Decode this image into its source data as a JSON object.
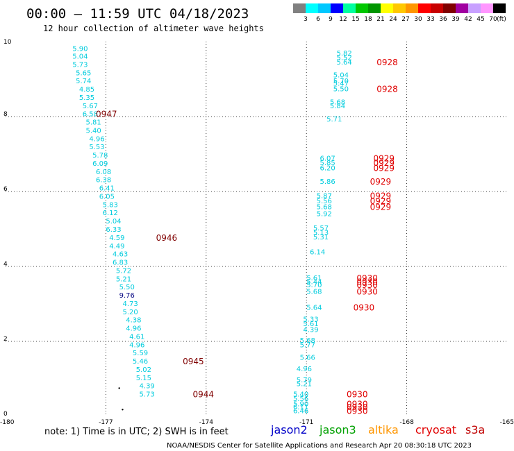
{
  "title": "00:00 — 11:59 UTC 04/18/2023",
  "subtitle": "12 hour collection of altimeter wave heights",
  "colorbar": {
    "unit": "(ft)",
    "labels": [
      "3",
      "6",
      "9",
      "12",
      "15",
      "18",
      "21",
      "24",
      "27",
      "30",
      "33",
      "36",
      "39",
      "42",
      "45",
      "70"
    ],
    "colors": [
      "#808080",
      "#00ffff",
      "#00c8ff",
      "#0000ff",
      "#00ffa0",
      "#00c800",
      "#009600",
      "#ffff00",
      "#ffc800",
      "#ff9600",
      "#ff0000",
      "#c80000",
      "#800000",
      "#a000a0",
      "#c8a0ff",
      "#ff96ff",
      "#000000"
    ]
  },
  "note": "note:  1) Time is in UTC; 2) SWH is in feet",
  "missions": [
    {
      "name": "jason2",
      "color": "#0000c8"
    },
    {
      "name": "jason3",
      "color": "#00a000"
    },
    {
      "name": "altika",
      "color": "#ff9600"
    },
    {
      "name": "cryosat",
      "color": "#e00000"
    },
    {
      "name": "s3a",
      "color": "#c00000"
    }
  ],
  "credit": "NOAA/NESDIS Center for Satellite Applications and Research    Apr 20 08:30:18 UTC 2023",
  "chart_data": {
    "type": "scatter",
    "x_ticks": [
      "-180",
      "-177",
      "-174",
      "-171",
      "-168",
      "-165"
    ],
    "y_ticks": [
      "0",
      "2",
      "4",
      "6",
      "8",
      "10"
    ],
    "xlim": [
      -180,
      -165
    ],
    "ylim": [
      0,
      10
    ],
    "grid": true,
    "colors": {
      "cyan": "#00ccdd",
      "navy": "#000080",
      "maroon": "#800000",
      "red": "#e00000"
    },
    "values": [
      {
        "x": -178.0,
        "y": 9.82,
        "v": "5.90",
        "c": "cyan"
      },
      {
        "x": -178.0,
        "y": 9.62,
        "v": "5.04",
        "c": "cyan"
      },
      {
        "x": -178.0,
        "y": 9.4,
        "v": "5.73",
        "c": "cyan"
      },
      {
        "x": -177.9,
        "y": 9.18,
        "v": "5.65",
        "c": "cyan"
      },
      {
        "x": -177.9,
        "y": 8.96,
        "v": "5.74",
        "c": "cyan"
      },
      {
        "x": -177.8,
        "y": 8.74,
        "v": "4.85",
        "c": "cyan"
      },
      {
        "x": -177.8,
        "y": 8.52,
        "v": "5.35",
        "c": "cyan"
      },
      {
        "x": -177.7,
        "y": 8.3,
        "v": "5.67",
        "c": "cyan"
      },
      {
        "x": -177.7,
        "y": 8.08,
        "v": "6.58",
        "c": "cyan"
      },
      {
        "x": -177.6,
        "y": 7.86,
        "v": "5.81",
        "c": "cyan"
      },
      {
        "x": -177.6,
        "y": 7.64,
        "v": "5.40",
        "c": "cyan"
      },
      {
        "x": -177.5,
        "y": 7.42,
        "v": "4.96",
        "c": "cyan"
      },
      {
        "x": -177.5,
        "y": 7.2,
        "v": "5.53",
        "c": "cyan"
      },
      {
        "x": -177.4,
        "y": 6.98,
        "v": "5.78",
        "c": "cyan"
      },
      {
        "x": -177.4,
        "y": 6.76,
        "v": "6.09",
        "c": "cyan"
      },
      {
        "x": -177.3,
        "y": 6.54,
        "v": "6.08",
        "c": "cyan"
      },
      {
        "x": -177.3,
        "y": 6.32,
        "v": "6.38",
        "c": "cyan"
      },
      {
        "x": -177.2,
        "y": 6.1,
        "v": "6.41",
        "c": "cyan"
      },
      {
        "x": -177.2,
        "y": 5.88,
        "v": "6.05",
        "c": "cyan"
      },
      {
        "x": -177.1,
        "y": 5.66,
        "v": "5.83",
        "c": "cyan"
      },
      {
        "x": -177.1,
        "y": 5.44,
        "v": "6.12",
        "c": "cyan"
      },
      {
        "x": -177.0,
        "y": 5.22,
        "v": "5.04",
        "c": "cyan"
      },
      {
        "x": -177.0,
        "y": 5.0,
        "v": "6.33",
        "c": "cyan"
      },
      {
        "x": -176.9,
        "y": 4.78,
        "v": "4.59",
        "c": "cyan"
      },
      {
        "x": -176.9,
        "y": 4.56,
        "v": "4.49",
        "c": "cyan"
      },
      {
        "x": -176.8,
        "y": 4.34,
        "v": "4.63",
        "c": "cyan"
      },
      {
        "x": -176.8,
        "y": 4.12,
        "v": "6.83",
        "c": "cyan"
      },
      {
        "x": -176.7,
        "y": 3.9,
        "v": "5.72",
        "c": "cyan"
      },
      {
        "x": -176.7,
        "y": 3.68,
        "v": "5.21",
        "c": "cyan"
      },
      {
        "x": -176.6,
        "y": 3.46,
        "v": "5.50",
        "c": "cyan"
      },
      {
        "x": -176.6,
        "y": 3.24,
        "v": "9.76",
        "c": "navy"
      },
      {
        "x": -176.5,
        "y": 3.02,
        "v": "4.73",
        "c": "cyan"
      },
      {
        "x": -176.5,
        "y": 2.8,
        "v": "5.20",
        "c": "cyan"
      },
      {
        "x": -176.4,
        "y": 2.58,
        "v": "4.38",
        "c": "cyan"
      },
      {
        "x": -176.4,
        "y": 2.36,
        "v": "4.96",
        "c": "cyan"
      },
      {
        "x": -176.3,
        "y": 2.14,
        "v": "4.61",
        "c": "cyan"
      },
      {
        "x": -176.3,
        "y": 1.92,
        "v": "4.96",
        "c": "cyan"
      },
      {
        "x": -176.2,
        "y": 1.7,
        "v": "5.59",
        "c": "cyan"
      },
      {
        "x": -176.2,
        "y": 1.48,
        "v": "5.46",
        "c": "cyan"
      },
      {
        "x": -176.1,
        "y": 1.26,
        "v": "5.02",
        "c": "cyan"
      },
      {
        "x": -176.1,
        "y": 1.04,
        "v": "5.15",
        "c": "cyan"
      },
      {
        "x": -176.0,
        "y": 0.82,
        "v": "4.39",
        "c": "cyan"
      },
      {
        "x": -176.0,
        "y": 0.6,
        "v": "5.73",
        "c": "cyan"
      },
      {
        "x": -170.1,
        "y": 9.7,
        "v": "5.82",
        "c": "cyan"
      },
      {
        "x": -170.1,
        "y": 9.58,
        "v": "5.52",
        "c": "cyan"
      },
      {
        "x": -170.1,
        "y": 9.46,
        "v": "5.64",
        "c": "cyan"
      },
      {
        "x": -170.2,
        "y": 9.12,
        "v": "5.04",
        "c": "cyan"
      },
      {
        "x": -170.2,
        "y": 8.96,
        "v": "5.70",
        "c": "cyan"
      },
      {
        "x": -170.2,
        "y": 8.9,
        "v": "5.47",
        "c": "cyan"
      },
      {
        "x": -170.2,
        "y": 8.75,
        "v": "5.50",
        "c": "cyan"
      },
      {
        "x": -170.3,
        "y": 8.4,
        "v": "5.68",
        "c": "cyan"
      },
      {
        "x": -170.3,
        "y": 8.3,
        "v": "5.84",
        "c": "cyan"
      },
      {
        "x": -170.4,
        "y": 7.94,
        "v": "5.71",
        "c": "cyan"
      },
      {
        "x": -170.6,
        "y": 6.9,
        "v": "6.07",
        "c": "cyan"
      },
      {
        "x": -170.6,
        "y": 6.78,
        "v": "5.85",
        "c": "cyan"
      },
      {
        "x": -170.6,
        "y": 6.64,
        "v": "6.20",
        "c": "cyan"
      },
      {
        "x": -170.6,
        "y": 6.28,
        "v": "5.86",
        "c": "cyan"
      },
      {
        "x": -170.7,
        "y": 5.9,
        "v": "5.87",
        "c": "cyan"
      },
      {
        "x": -170.7,
        "y": 5.76,
        "v": "5.56",
        "c": "cyan"
      },
      {
        "x": -170.7,
        "y": 5.6,
        "v": "5.68",
        "c": "cyan"
      },
      {
        "x": -170.7,
        "y": 5.42,
        "v": "5.92",
        "c": "cyan"
      },
      {
        "x": -170.8,
        "y": 5.04,
        "v": "5.57",
        "c": "cyan"
      },
      {
        "x": -170.8,
        "y": 4.92,
        "v": "5.13",
        "c": "cyan"
      },
      {
        "x": -170.8,
        "y": 4.8,
        "v": "5.31",
        "c": "cyan"
      },
      {
        "x": -170.9,
        "y": 4.4,
        "v": "6.14",
        "c": "cyan"
      },
      {
        "x": -171.0,
        "y": 3.7,
        "v": "5.61",
        "c": "cyan"
      },
      {
        "x": -171.0,
        "y": 3.6,
        "v": "5.44",
        "c": "cyan"
      },
      {
        "x": -171.0,
        "y": 3.52,
        "v": "5.70",
        "c": "cyan"
      },
      {
        "x": -171.0,
        "y": 3.34,
        "v": "5.68",
        "c": "cyan"
      },
      {
        "x": -171.0,
        "y": 2.92,
        "v": "5.64",
        "c": "cyan"
      },
      {
        "x": -171.1,
        "y": 2.6,
        "v": "5.33",
        "c": "cyan"
      },
      {
        "x": -171.1,
        "y": 2.48,
        "v": "5.61",
        "c": "cyan"
      },
      {
        "x": -171.1,
        "y": 2.32,
        "v": "4.39",
        "c": "cyan"
      },
      {
        "x": -171.2,
        "y": 2.04,
        "v": "5.68",
        "c": "cyan"
      },
      {
        "x": -171.2,
        "y": 1.92,
        "v": "5.77",
        "c": "cyan"
      },
      {
        "x": -171.2,
        "y": 1.58,
        "v": "5.66",
        "c": "cyan"
      },
      {
        "x": -171.3,
        "y": 1.28,
        "v": "4.96",
        "c": "cyan"
      },
      {
        "x": -171.3,
        "y": 0.98,
        "v": "5.79",
        "c": "cyan"
      },
      {
        "x": -171.3,
        "y": 0.88,
        "v": "5.21",
        "c": "cyan"
      },
      {
        "x": -171.4,
        "y": 0.6,
        "v": "5.40",
        "c": "cyan"
      },
      {
        "x": -171.4,
        "y": 0.48,
        "v": "5.56",
        "c": "cyan"
      },
      {
        "x": -171.4,
        "y": 0.34,
        "v": "5.90",
        "c": "cyan"
      },
      {
        "x": -171.4,
        "y": 0.26,
        "v": "6.11",
        "c": "cyan"
      },
      {
        "x": -171.4,
        "y": 0.16,
        "v": "6.46",
        "c": "cyan"
      }
    ],
    "times": [
      {
        "x": -177.3,
        "y": 8.08,
        "v": "0947",
        "c": "maroon"
      },
      {
        "x": -175.5,
        "y": 4.78,
        "v": "0946",
        "c": "maroon"
      },
      {
        "x": -174.7,
        "y": 1.48,
        "v": "0945",
        "c": "maroon"
      },
      {
        "x": -174.4,
        "y": 0.6,
        "v": "0944",
        "c": "maroon"
      },
      {
        "x": -168.9,
        "y": 9.46,
        "v": "0928",
        "c": "red"
      },
      {
        "x": -168.9,
        "y": 8.75,
        "v": "0928",
        "c": "red"
      },
      {
        "x": -169.0,
        "y": 6.9,
        "v": "0929",
        "c": "red"
      },
      {
        "x": -169.0,
        "y": 6.78,
        "v": "0929",
        "c": "red"
      },
      {
        "x": -169.0,
        "y": 6.64,
        "v": "0929",
        "c": "red"
      },
      {
        "x": -169.1,
        "y": 6.28,
        "v": "0929",
        "c": "red"
      },
      {
        "x": -169.1,
        "y": 5.9,
        "v": "0929",
        "c": "red"
      },
      {
        "x": -169.1,
        "y": 5.76,
        "v": "0929",
        "c": "red"
      },
      {
        "x": -169.1,
        "y": 5.6,
        "v": "0929",
        "c": "red"
      },
      {
        "x": -169.5,
        "y": 3.7,
        "v": "0930",
        "c": "red"
      },
      {
        "x": -169.5,
        "y": 3.6,
        "v": "0930",
        "c": "red"
      },
      {
        "x": -169.5,
        "y": 3.52,
        "v": "0930",
        "c": "red"
      },
      {
        "x": -169.5,
        "y": 3.34,
        "v": "0930",
        "c": "red"
      },
      {
        "x": -169.6,
        "y": 2.92,
        "v": "0930",
        "c": "red"
      },
      {
        "x": -169.8,
        "y": 0.6,
        "v": "0930",
        "c": "red"
      },
      {
        "x": -169.8,
        "y": 0.34,
        "v": "0930",
        "c": "red"
      },
      {
        "x": -169.8,
        "y": 0.26,
        "v": "0930",
        "c": "red"
      },
      {
        "x": -169.8,
        "y": 0.16,
        "v": "0930",
        "c": "red"
      }
    ],
    "dots": [
      {
        "x": -176.6,
        "y": 0.75
      },
      {
        "x": -176.5,
        "y": 0.18
      }
    ]
  }
}
